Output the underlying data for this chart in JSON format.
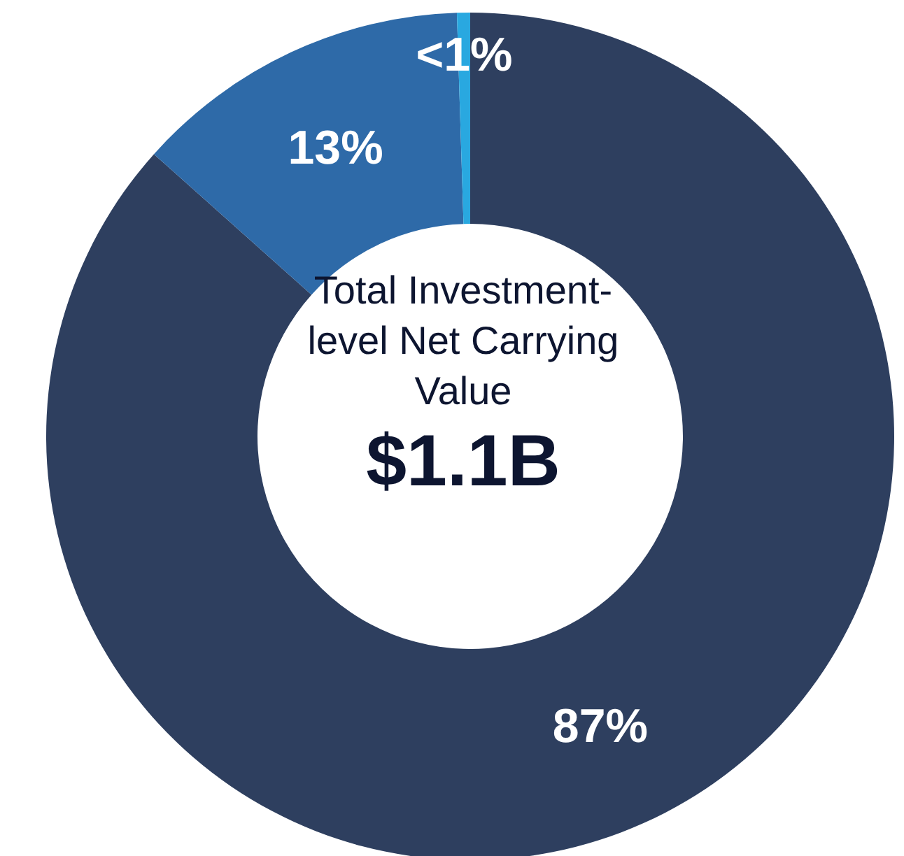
{
  "chart_data": {
    "type": "donut",
    "categories": [
      null,
      null,
      null
    ],
    "values": [
      86.6,
      12.9,
      0.5
    ],
    "colors": [
      "#2e3f5f",
      "#2e6aa8",
      "#29a8e0"
    ],
    "value_labels": [
      "87%",
      "13%",
      "<1%"
    ],
    "annotations": [
      "Total Investment-level Net Carrying Value",
      "$1.1B"
    ],
    "legend": false
  }
}
